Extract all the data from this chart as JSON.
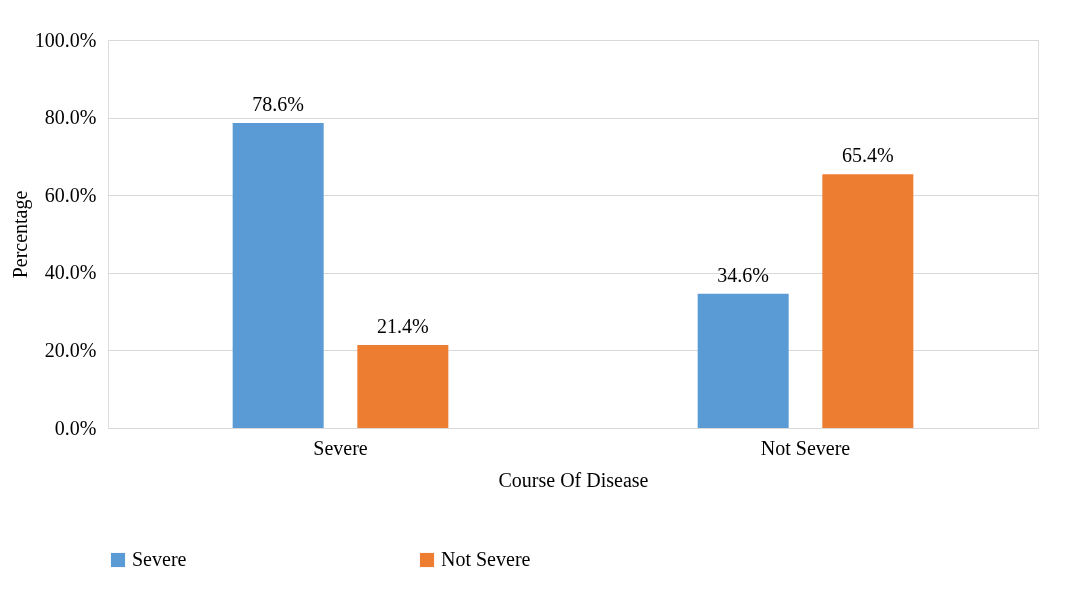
{
  "chart_data": {
    "type": "bar",
    "xlabel": "Course Of Disease",
    "ylabel": "Percentage",
    "categories": [
      "Severe",
      "Not Severe"
    ],
    "series": [
      {
        "name": "Severe",
        "color": "#5b9bd5",
        "values": [
          78.6,
          34.6
        ],
        "value_labels": [
          "78.6%",
          "34.6%"
        ]
      },
      {
        "name": "Not Severe",
        "color": "#ed7d31",
        "values": [
          21.4,
          65.4
        ],
        "value_labels": [
          "21.4%",
          "65.4%"
        ]
      }
    ],
    "ylim": [
      0,
      100
    ],
    "yticks": [
      {
        "value": 0,
        "label": "0.0%"
      },
      {
        "value": 20,
        "label": "20.0%"
      },
      {
        "value": 40,
        "label": "40.0%"
      },
      {
        "value": 60,
        "label": "60.0%"
      },
      {
        "value": 80,
        "label": "80.0%"
      },
      {
        "value": 100,
        "label": "100.0%"
      }
    ],
    "grid": "y",
    "legend": "bottom"
  }
}
